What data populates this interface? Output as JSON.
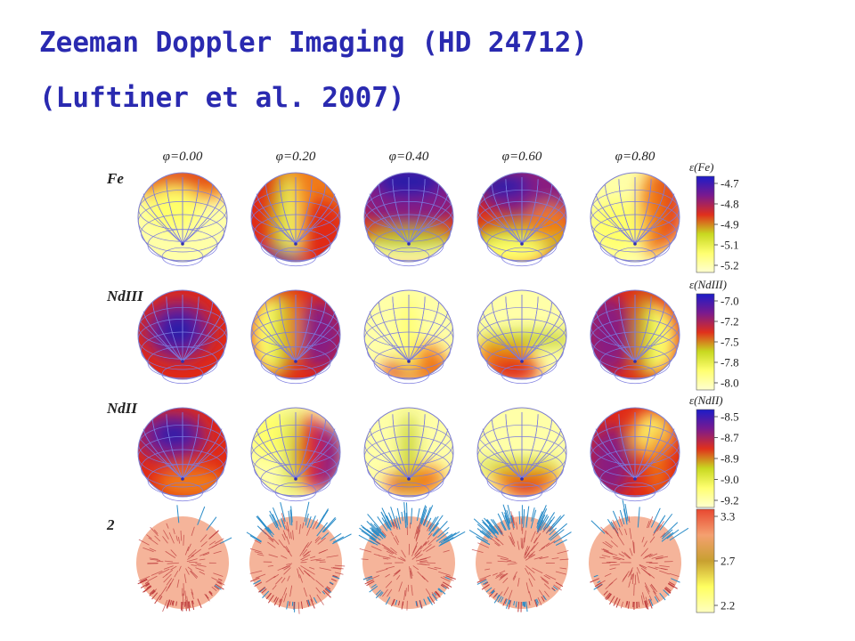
{
  "slide": {
    "title_line1": "Zeeman Doppler Imaging (HD 24712)",
    "title_line2": "(Luftiner et al. 2007)"
  },
  "figure": {
    "phases": [
      "φ=0.00",
      "φ=0.20",
      "φ=0.40",
      "φ=0.60",
      "φ=0.80"
    ],
    "rows": [
      {
        "label": "Fe",
        "scale_title": "ε(Fe)",
        "ticks": [
          "-4.7",
          "-4.8",
          "-4.9",
          "-5.1",
          "-5.2"
        ],
        "colors": [
          "#1c1cc8",
          "#7a1a8e",
          "#e0301c",
          "#c8d820",
          "#ffff70",
          "#ffffd0"
        ]
      },
      {
        "label": "NdIII",
        "scale_title": "ε(NdIII)",
        "ticks": [
          "-7.0",
          "-7.2",
          "-7.5",
          "-7.8",
          "-8.0"
        ],
        "colors": [
          "#1c1cc8",
          "#7a1a8e",
          "#e0301c",
          "#c8d820",
          "#ffff70",
          "#ffffd0"
        ]
      },
      {
        "label": "NdII",
        "scale_title": "ε(NdII)",
        "ticks": [
          "-8.5",
          "-8.7",
          "-8.9",
          "-9.0",
          "-9.2"
        ],
        "colors": [
          "#1c1cc8",
          "#7a1a8e",
          "#e0301c",
          "#c8d820",
          "#ffff70",
          "#ffffd0"
        ]
      },
      {
        "label": "2",
        "scale_title": "",
        "ticks": [
          "3.3",
          "2.7",
          "2.2"
        ],
        "colors": [
          "#e84830",
          "#f4a070",
          "#c8a030",
          "#ffff60",
          "#ffffc0"
        ]
      }
    ],
    "vector_colors": {
      "outward": "#2a8cc8",
      "inward": "#c04040",
      "surface": "#f5b49a"
    }
  }
}
